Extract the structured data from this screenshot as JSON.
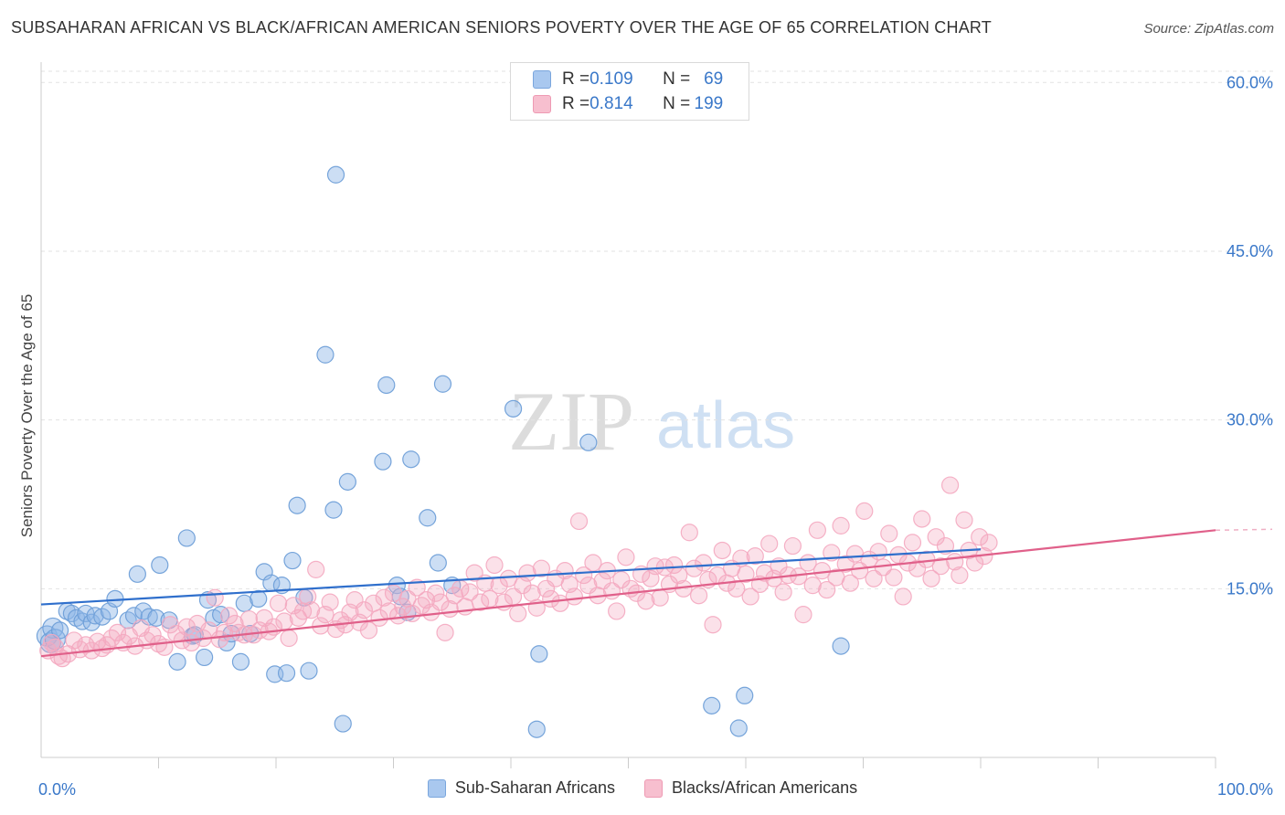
{
  "title": "SUBSAHARAN AFRICAN VS BLACK/AFRICAN AMERICAN SENIORS POVERTY OVER THE AGE OF 65 CORRELATION CHART",
  "source": "Source: ZipAtlas.com",
  "watermark": {
    "zip": "ZIP",
    "atlas": "atlas"
  },
  "legend": {
    "rows": [
      {
        "r_label": "R = ",
        "r_value": "0.109",
        "n_label": "N = ",
        "n_value": "69",
        "color": "#a9c8ef",
        "border": "#7aa6dd"
      },
      {
        "r_label": "R = ",
        "r_value": "0.814",
        "n_label": "N = ",
        "n_value": "199",
        "color": "#f7bfcf",
        "border": "#ee9ab3"
      }
    ]
  },
  "chart_data": {
    "type": "scatter",
    "title": "SUBSAHARAN AFRICAN VS BLACK/AFRICAN AMERICAN SENIORS POVERTY OVER THE AGE OF 65 CORRELATION CHART",
    "ylabel": "Seniors Poverty Over the Age of 65",
    "xlabel": "",
    "xlim": [
      0,
      100
    ],
    "ylim": [
      0,
      61
    ],
    "x_tick_labels": [
      "0.0%",
      "100.0%"
    ],
    "y_ticks": [
      15,
      30,
      45,
      60
    ],
    "y_tick_labels": [
      "15.0%",
      "30.0%",
      "45.0%",
      "60.0%"
    ],
    "grid": "horizontal dashed",
    "legend_position": "bottom",
    "series": [
      {
        "name": "Sub-Saharan Africans",
        "color": "#8fb6e6",
        "line_color": "#2f6fcc",
        "trend": {
          "x": [
            0,
            80
          ],
          "y": [
            13.6,
            18.5
          ]
        },
        "points": [
          [
            0.5,
            10.8
          ],
          [
            0.8,
            10.2
          ],
          [
            1.0,
            11.5
          ],
          [
            1.2,
            10.5
          ],
          [
            1.6,
            11.3
          ],
          [
            2.2,
            13.0
          ],
          [
            2.6,
            12.8
          ],
          [
            3.0,
            12.4
          ],
          [
            3.5,
            12.1
          ],
          [
            3.8,
            12.8
          ],
          [
            4.3,
            12.0
          ],
          [
            4.6,
            12.6
          ],
          [
            5.2,
            12.5
          ],
          [
            5.8,
            13.0
          ],
          [
            6.3,
            14.1
          ],
          [
            7.4,
            12.2
          ],
          [
            7.9,
            12.6
          ],
          [
            8.2,
            16.3
          ],
          [
            8.7,
            13.0
          ],
          [
            9.2,
            12.5
          ],
          [
            9.8,
            12.4
          ],
          [
            10.1,
            17.1
          ],
          [
            10.9,
            12.2
          ],
          [
            11.6,
            8.5
          ],
          [
            12.4,
            19.5
          ],
          [
            12.9,
            10.8
          ],
          [
            13.1,
            10.9
          ],
          [
            13.9,
            8.9
          ],
          [
            14.2,
            14.0
          ],
          [
            14.7,
            12.4
          ],
          [
            15.3,
            12.7
          ],
          [
            15.8,
            10.2
          ],
          [
            16.2,
            11.0
          ],
          [
            17.0,
            8.5
          ],
          [
            17.3,
            13.7
          ],
          [
            17.8,
            11.0
          ],
          [
            18.5,
            14.1
          ],
          [
            19.0,
            16.5
          ],
          [
            19.6,
            15.5
          ],
          [
            19.9,
            7.4
          ],
          [
            20.5,
            15.3
          ],
          [
            20.9,
            7.5
          ],
          [
            21.4,
            17.5
          ],
          [
            21.8,
            22.4
          ],
          [
            22.4,
            14.2
          ],
          [
            22.8,
            7.7
          ],
          [
            24.2,
            35.8
          ],
          [
            24.9,
            22.0
          ],
          [
            25.1,
            51.8
          ],
          [
            25.7,
            3.0
          ],
          [
            26.1,
            24.5
          ],
          [
            29.1,
            26.3
          ],
          [
            29.4,
            33.1
          ],
          [
            30.3,
            15.3
          ],
          [
            30.6,
            14.3
          ],
          [
            31.2,
            12.9
          ],
          [
            31.5,
            26.5
          ],
          [
            32.9,
            21.3
          ],
          [
            33.8,
            17.3
          ],
          [
            34.2,
            33.2
          ],
          [
            35.0,
            15.3
          ],
          [
            40.2,
            31.0
          ],
          [
            42.2,
            2.5
          ],
          [
            42.4,
            9.2
          ],
          [
            46.6,
            28.0
          ],
          [
            57.1,
            4.6
          ],
          [
            59.4,
            2.6
          ],
          [
            59.9,
            5.5
          ],
          [
            68.1,
            9.9
          ]
        ]
      },
      {
        "name": "Blacks/African Americans",
        "color": "#f4a9c0",
        "line_color": "#e0608a",
        "trend": {
          "x": [
            0,
            100
          ],
          "y": [
            9.0,
            20.2
          ]
        },
        "points": [
          [
            0.6,
            9.5
          ],
          [
            0.9,
            10.2
          ],
          [
            1.2,
            9.8
          ],
          [
            1.5,
            9.0
          ],
          [
            1.8,
            8.8
          ],
          [
            2.3,
            9.2
          ],
          [
            2.8,
            10.4
          ],
          [
            3.3,
            9.6
          ],
          [
            3.8,
            10.0
          ],
          [
            4.3,
            9.5
          ],
          [
            4.8,
            10.3
          ],
          [
            5.2,
            9.7
          ],
          [
            5.6,
            10.0
          ],
          [
            6.0,
            10.6
          ],
          [
            6.5,
            11.1
          ],
          [
            7.0,
            10.2
          ],
          [
            7.5,
            10.8
          ],
          [
            8.0,
            9.9
          ],
          [
            8.5,
            11.5
          ],
          [
            9.0,
            10.4
          ],
          [
            9.5,
            10.9
          ],
          [
            10.0,
            10.1
          ],
          [
            10.5,
            9.8
          ],
          [
            11.0,
            11.8
          ],
          [
            11.5,
            11.0
          ],
          [
            12.0,
            10.4
          ],
          [
            12.4,
            11.6
          ],
          [
            12.8,
            10.2
          ],
          [
            13.3,
            11.9
          ],
          [
            13.8,
            10.6
          ],
          [
            14.3,
            11.3
          ],
          [
            14.8,
            14.2
          ],
          [
            15.2,
            10.5
          ],
          [
            15.6,
            11.1
          ],
          [
            16.0,
            12.6
          ],
          [
            16.5,
            11.9
          ],
          [
            16.8,
            11.1
          ],
          [
            17.3,
            10.9
          ],
          [
            17.7,
            12.3
          ],
          [
            18.1,
            10.9
          ],
          [
            18.6,
            11.3
          ],
          [
            19.0,
            12.4
          ],
          [
            19.4,
            11.2
          ],
          [
            19.8,
            11.6
          ],
          [
            20.2,
            13.7
          ],
          [
            20.7,
            12.1
          ],
          [
            21.1,
            10.6
          ],
          [
            21.5,
            13.5
          ],
          [
            21.9,
            12.4
          ],
          [
            22.3,
            13.0
          ],
          [
            22.7,
            14.3
          ],
          [
            23.0,
            13.1
          ],
          [
            23.4,
            16.7
          ],
          [
            23.8,
            11.7
          ],
          [
            24.2,
            12.7
          ],
          [
            24.6,
            13.8
          ],
          [
            25.1,
            11.4
          ],
          [
            25.5,
            12.2
          ],
          [
            25.9,
            11.8
          ],
          [
            26.3,
            12.9
          ],
          [
            26.7,
            14.0
          ],
          [
            27.1,
            12.0
          ],
          [
            27.5,
            13.1
          ],
          [
            27.9,
            11.3
          ],
          [
            28.3,
            13.7
          ],
          [
            28.8,
            12.4
          ],
          [
            29.2,
            14.2
          ],
          [
            29.6,
            13.0
          ],
          [
            30.0,
            14.6
          ],
          [
            30.4,
            12.6
          ],
          [
            30.8,
            13.4
          ],
          [
            31.2,
            14.1
          ],
          [
            31.6,
            12.8
          ],
          [
            32.0,
            15.1
          ],
          [
            32.4,
            13.5
          ],
          [
            32.8,
            14.0
          ],
          [
            33.2,
            12.9
          ],
          [
            33.6,
            14.6
          ],
          [
            34.0,
            13.8
          ],
          [
            34.4,
            11.1
          ],
          [
            34.8,
            13.2
          ],
          [
            35.2,
            14.4
          ],
          [
            35.7,
            15.0
          ],
          [
            36.1,
            13.4
          ],
          [
            36.5,
            14.7
          ],
          [
            36.9,
            16.4
          ],
          [
            37.4,
            13.8
          ],
          [
            37.8,
            15.5
          ],
          [
            38.2,
            14.1
          ],
          [
            38.6,
            17.1
          ],
          [
            39.0,
            15.3
          ],
          [
            39.4,
            13.8
          ],
          [
            39.8,
            15.9
          ],
          [
            40.2,
            14.3
          ],
          [
            40.6,
            12.8
          ],
          [
            41.0,
            15.3
          ],
          [
            41.4,
            16.4
          ],
          [
            41.8,
            14.6
          ],
          [
            42.2,
            13.3
          ],
          [
            42.6,
            16.8
          ],
          [
            43.0,
            15.0
          ],
          [
            43.4,
            14.1
          ],
          [
            43.8,
            15.9
          ],
          [
            44.2,
            13.7
          ],
          [
            44.6,
            16.6
          ],
          [
            45.0,
            15.4
          ],
          [
            45.4,
            14.3
          ],
          [
            45.8,
            21.0
          ],
          [
            46.2,
            16.2
          ],
          [
            46.6,
            15.3
          ],
          [
            47.0,
            17.3
          ],
          [
            47.4,
            14.4
          ],
          [
            47.8,
            15.7
          ],
          [
            48.2,
            16.6
          ],
          [
            48.6,
            14.8
          ],
          [
            49.0,
            13.0
          ],
          [
            49.4,
            15.8
          ],
          [
            49.8,
            17.8
          ],
          [
            50.2,
            15.0
          ],
          [
            50.7,
            14.6
          ],
          [
            51.1,
            16.3
          ],
          [
            51.5,
            13.9
          ],
          [
            51.9,
            15.9
          ],
          [
            52.3,
            17.0
          ],
          [
            52.7,
            14.2
          ],
          [
            53.1,
            16.9
          ],
          [
            53.5,
            15.4
          ],
          [
            53.9,
            17.1
          ],
          [
            54.3,
            16.2
          ],
          [
            54.7,
            15.0
          ],
          [
            55.2,
            20.0
          ],
          [
            55.6,
            16.8
          ],
          [
            56.0,
            14.4
          ],
          [
            56.4,
            17.3
          ],
          [
            56.8,
            15.8
          ],
          [
            57.2,
            11.8
          ],
          [
            57.6,
            16.2
          ],
          [
            58.0,
            18.4
          ],
          [
            58.4,
            15.5
          ],
          [
            58.8,
            16.8
          ],
          [
            59.2,
            15.0
          ],
          [
            59.6,
            17.7
          ],
          [
            60.0,
            16.3
          ],
          [
            60.4,
            14.3
          ],
          [
            60.8,
            17.9
          ],
          [
            61.2,
            15.4
          ],
          [
            61.6,
            16.4
          ],
          [
            62.0,
            19.0
          ],
          [
            62.4,
            15.9
          ],
          [
            62.8,
            17.0
          ],
          [
            63.2,
            14.7
          ],
          [
            63.6,
            16.2
          ],
          [
            64.0,
            18.8
          ],
          [
            64.5,
            16.1
          ],
          [
            64.9,
            12.7
          ],
          [
            65.3,
            17.3
          ],
          [
            65.7,
            15.3
          ],
          [
            66.1,
            20.2
          ],
          [
            66.5,
            16.6
          ],
          [
            66.9,
            14.9
          ],
          [
            67.3,
            18.2
          ],
          [
            67.7,
            16.0
          ],
          [
            68.1,
            20.6
          ],
          [
            68.5,
            17.2
          ],
          [
            68.9,
            15.5
          ],
          [
            69.3,
            18.1
          ],
          [
            69.7,
            16.6
          ],
          [
            70.1,
            21.9
          ],
          [
            70.5,
            17.6
          ],
          [
            70.9,
            15.9
          ],
          [
            71.3,
            18.3
          ],
          [
            71.7,
            16.9
          ],
          [
            72.2,
            19.9
          ],
          [
            72.6,
            16.0
          ],
          [
            73.0,
            18.0
          ],
          [
            73.4,
            14.3
          ],
          [
            73.8,
            17.3
          ],
          [
            74.2,
            19.1
          ],
          [
            74.6,
            16.8
          ],
          [
            75.0,
            21.2
          ],
          [
            75.4,
            17.6
          ],
          [
            75.8,
            15.9
          ],
          [
            76.2,
            19.6
          ],
          [
            76.6,
            17.0
          ],
          [
            77.0,
            18.8
          ],
          [
            77.4,
            24.2
          ],
          [
            77.8,
            17.4
          ],
          [
            78.2,
            16.2
          ],
          [
            78.6,
            21.1
          ],
          [
            79.0,
            18.4
          ],
          [
            79.5,
            17.3
          ],
          [
            79.9,
            19.6
          ],
          [
            80.3,
            17.9
          ],
          [
            80.7,
            19.1
          ]
        ]
      }
    ]
  },
  "bottom_legend": [
    {
      "label": "Sub-Saharan Africans",
      "color": "#a9c8ef",
      "border": "#7aa6dd"
    },
    {
      "label": "Blacks/African Americans",
      "color": "#f7bfcf",
      "border": "#ee9ab3"
    }
  ]
}
